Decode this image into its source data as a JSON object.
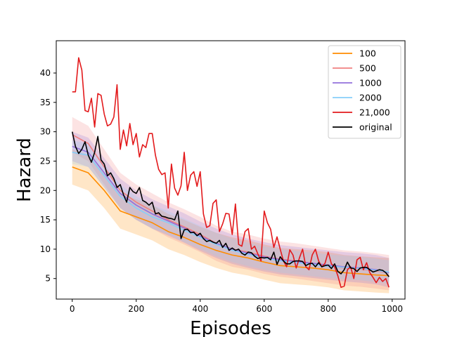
{
  "chart_data": {
    "type": "line",
    "title": "",
    "xlabel": "Episodes",
    "ylabel": "Hazard",
    "xlim": [
      -50,
      1040
    ],
    "ylim": [
      1.5,
      45.5
    ],
    "xticks": [
      0,
      200,
      400,
      600,
      800,
      1000
    ],
    "yticks": [
      5,
      10,
      15,
      20,
      25,
      30,
      35,
      40
    ],
    "grid": false,
    "legend": "top-right",
    "series": [
      {
        "name": "100",
        "color": "#ff8c00",
        "band": 3.0,
        "x": [
          0,
          50,
          100,
          150,
          200,
          250,
          300,
          350,
          400,
          450,
          500,
          550,
          600,
          650,
          700,
          750,
          800,
          850,
          900,
          950,
          990
        ],
        "y": [
          24.0,
          23.0,
          20.0,
          16.5,
          15.5,
          14.5,
          13.0,
          12.0,
          10.8,
          9.8,
          9.0,
          8.5,
          7.8,
          7.2,
          7.0,
          6.8,
          6.5,
          6.0,
          5.8,
          5.6,
          5.5
        ]
      },
      {
        "name": "500",
        "color": "#f08080",
        "band": 3.0,
        "x": [
          0,
          50,
          100,
          150,
          200,
          250,
          300,
          350,
          400,
          450,
          500,
          550,
          600,
          650,
          700,
          750,
          800,
          850,
          900,
          950,
          990
        ],
        "y": [
          29.5,
          28.0,
          24.0,
          20.0,
          18.0,
          16.5,
          15.0,
          13.8,
          12.5,
          11.0,
          10.0,
          9.5,
          8.8,
          8.3,
          8.0,
          7.6,
          7.2,
          6.8,
          6.6,
          6.3,
          6.0
        ]
      },
      {
        "name": "1000",
        "color": "#9370db",
        "band": 2.5,
        "x": [
          0,
          50,
          100,
          150,
          200,
          250,
          300,
          350,
          400,
          450,
          500,
          550,
          600,
          650,
          700,
          750,
          800,
          850,
          900,
          950,
          990
        ],
        "y": [
          27.5,
          26.5,
          23.0,
          19.5,
          17.5,
          16.0,
          14.8,
          13.6,
          12.2,
          11.0,
          10.0,
          9.3,
          8.7,
          8.2,
          7.9,
          7.6,
          7.3,
          7.0,
          6.8,
          6.5,
          6.0
        ]
      },
      {
        "name": "2000",
        "color": "#87cefa",
        "band": 2.0,
        "x": [
          0,
          50,
          100,
          150,
          200,
          250,
          300,
          350,
          400,
          450,
          500,
          550,
          600,
          650,
          700,
          750,
          800,
          850,
          900,
          950,
          990
        ],
        "y": [
          26.5,
          26.0,
          22.5,
          19.0,
          17.0,
          15.5,
          14.5,
          13.2,
          12.0,
          10.8,
          9.8,
          9.1,
          8.5,
          8.0,
          7.7,
          7.4,
          7.1,
          6.9,
          6.7,
          6.4,
          6.1
        ]
      },
      {
        "name": "21,000",
        "color": "#e31a1c",
        "band": 0,
        "x": [
          0,
          10,
          20,
          30,
          40,
          50,
          60,
          70,
          80,
          90,
          100,
          110,
          120,
          130,
          140,
          150,
          160,
          170,
          180,
          190,
          200,
          210,
          220,
          230,
          240,
          250,
          260,
          270,
          280,
          290,
          300,
          310,
          320,
          330,
          340,
          350,
          360,
          370,
          380,
          390,
          400,
          410,
          420,
          430,
          440,
          450,
          460,
          470,
          480,
          490,
          500,
          510,
          520,
          530,
          540,
          550,
          560,
          570,
          580,
          590,
          600,
          610,
          620,
          630,
          640,
          650,
          660,
          670,
          680,
          690,
          700,
          710,
          720,
          730,
          740,
          750,
          760,
          770,
          780,
          790,
          800,
          810,
          820,
          830,
          840,
          850,
          860,
          870,
          880,
          890,
          900,
          910,
          920,
          930,
          940,
          950,
          960,
          970,
          980,
          990
        ],
        "y": [
          36.8,
          36.8,
          42.6,
          40.5,
          33.6,
          33.4,
          35.7,
          30.8,
          36.5,
          36.2,
          33.0,
          31.0,
          31.3,
          32.5,
          38.0,
          27.0,
          30.3,
          27.6,
          31.4,
          27.8,
          29.7,
          25.7,
          27.8,
          27.3,
          29.7,
          29.7,
          26.0,
          23.6,
          22.7,
          23.0,
          17.0,
          24.5,
          20.4,
          19.2,
          20.8,
          26.5,
          20.0,
          22.6,
          23.2,
          20.7,
          23.2,
          16.0,
          13.7,
          14.0,
          17.8,
          18.4,
          13.0,
          14.3,
          16.1,
          16.0,
          12.5,
          17.7,
          10.8,
          10.5,
          13.0,
          13.5,
          10.0,
          10.5,
          9.2,
          8.0,
          16.5,
          14.5,
          13.4,
          10.3,
          12.1,
          10.0,
          8.0,
          7.0,
          9.9,
          9.0,
          6.8,
          8.5,
          10.0,
          7.0,
          6.5,
          9.0,
          10.0,
          8.0,
          7.0,
          7.6,
          9.5,
          7.5,
          7.0,
          5.5,
          3.5,
          3.7,
          6.5,
          7.0,
          5.0,
          8.2,
          8.6,
          6.5,
          7.7,
          6.0,
          5.2,
          4.3,
          5.2,
          4.5,
          5.0,
          3.5
        ]
      },
      {
        "name": "original",
        "color": "#000000",
        "band": 0,
        "x": [
          0,
          10,
          20,
          30,
          40,
          50,
          60,
          70,
          80,
          90,
          100,
          110,
          120,
          130,
          140,
          150,
          160,
          170,
          180,
          190,
          200,
          210,
          220,
          230,
          240,
          250,
          260,
          270,
          280,
          290,
          300,
          310,
          320,
          330,
          340,
          350,
          360,
          370,
          380,
          390,
          400,
          410,
          420,
          430,
          440,
          450,
          460,
          470,
          480,
          490,
          500,
          510,
          520,
          530,
          540,
          550,
          560,
          570,
          580,
          590,
          600,
          610,
          620,
          630,
          640,
          650,
          660,
          670,
          680,
          690,
          700,
          710,
          720,
          730,
          740,
          750,
          760,
          770,
          780,
          790,
          800,
          810,
          820,
          830,
          840,
          850,
          860,
          870,
          880,
          890,
          900,
          910,
          920,
          930,
          940,
          950,
          960,
          970,
          980,
          990
        ],
        "y": [
          30.0,
          27.5,
          26.3,
          27.0,
          28.3,
          26.0,
          24.8,
          26.5,
          29.2,
          25.2,
          24.5,
          22.5,
          23.0,
          22.0,
          20.5,
          21.0,
          19.3,
          18.0,
          20.5,
          19.8,
          19.5,
          20.5,
          18.3,
          18.0,
          17.5,
          18.0,
          16.0,
          16.2,
          15.6,
          15.5,
          15.3,
          15.2,
          15.0,
          16.5,
          11.8,
          13.3,
          13.4,
          12.8,
          12.9,
          12.3,
          12.7,
          11.8,
          11.3,
          11.5,
          11.2,
          11.0,
          11.5,
          10.3,
          11.0,
          9.8,
          10.2,
          9.8,
          10.0,
          9.3,
          9.0,
          9.5,
          9.4,
          8.8,
          8.4,
          8.6,
          8.5,
          8.6,
          8.2,
          9.5,
          7.4,
          8.7,
          8.0,
          7.5,
          7.5,
          7.9,
          8.0,
          8.0,
          7.9,
          7.2,
          7.5,
          7.6,
          7.0,
          7.7,
          7.0,
          7.2,
          7.3,
          6.7,
          7.5,
          6.2,
          5.8,
          6.5,
          7.8,
          6.8,
          6.7,
          6.2,
          6.8,
          6.9,
          6.9,
          6.5,
          6.1,
          6.3,
          6.5,
          6.4,
          6.0,
          5.3
        ]
      }
    ]
  }
}
